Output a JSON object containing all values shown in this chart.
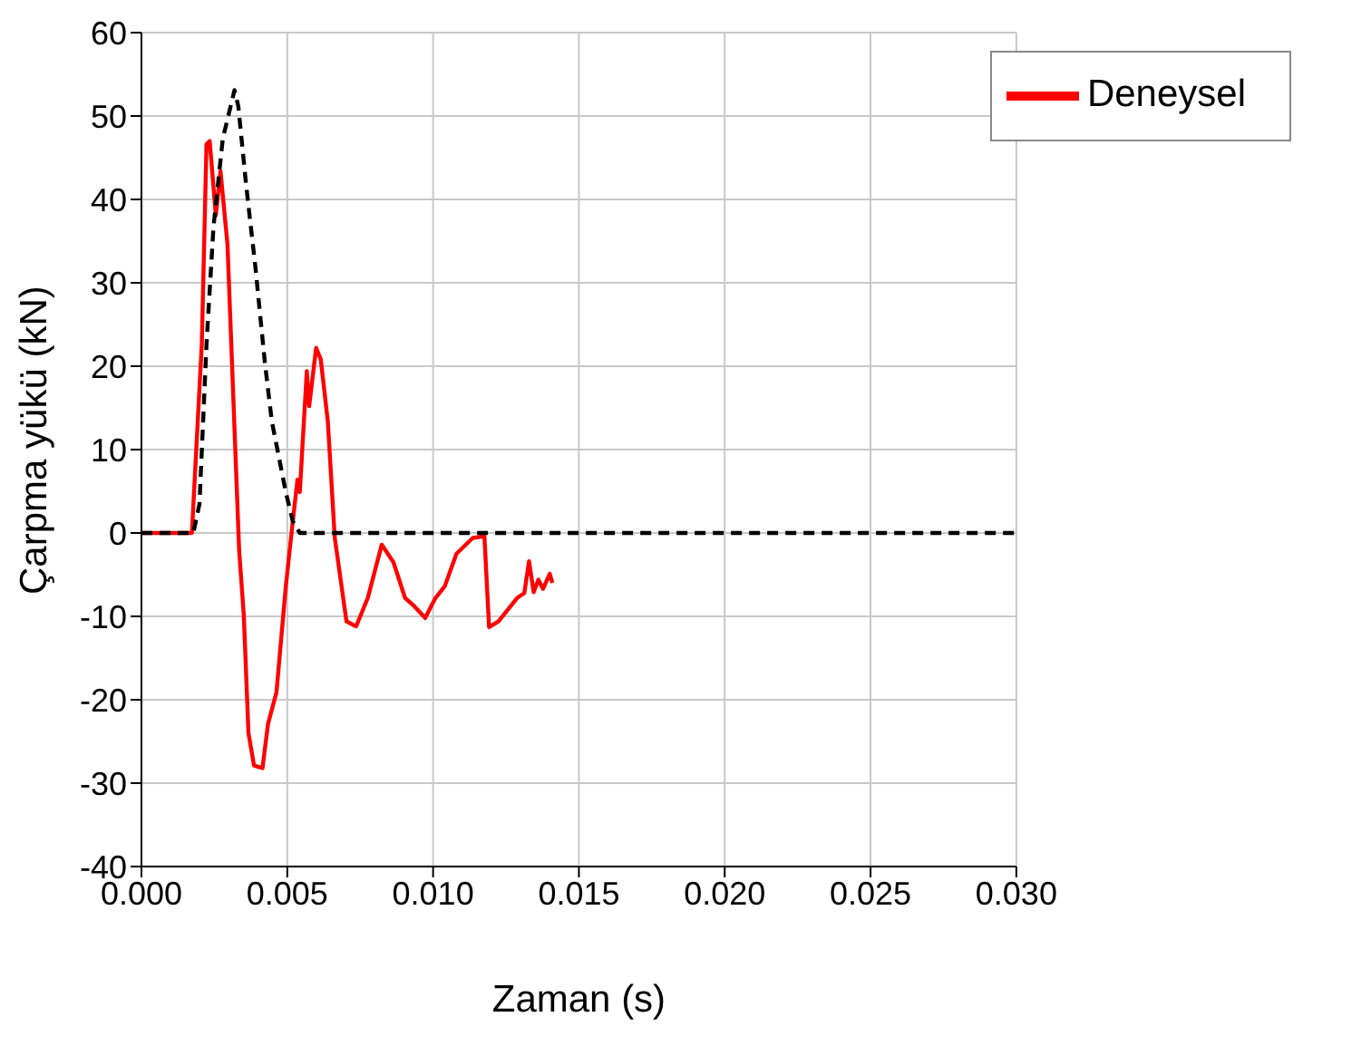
{
  "chart_data": {
    "type": "line",
    "xlabel": "Zaman (s)",
    "ylabel": "Çarpma yükü (kN)",
    "xlim": [
      0,
      0.03
    ],
    "ylim": [
      -40,
      60
    ],
    "xticks": [
      {
        "value": 0,
        "label": "0.000"
      },
      {
        "value": 0.005,
        "label": "0.005"
      },
      {
        "value": 0.01,
        "label": "0.010"
      },
      {
        "value": 0.015,
        "label": "0.015"
      },
      {
        "value": 0.02,
        "label": "0.020"
      },
      {
        "value": 0.025,
        "label": "0.025"
      },
      {
        "value": 0.03,
        "label": "0.030"
      }
    ],
    "yticks": [
      -40,
      -30,
      -20,
      -10,
      0,
      10,
      20,
      30,
      40,
      50,
      60
    ],
    "grid": true,
    "legend": "top right",
    "marker": "none",
    "series": [
      {
        "name": "Deneysel",
        "color": "#ff0000",
        "line_style": "solid",
        "x": [
          0,
          0.00173,
          0.00207,
          0.00223,
          0.00234,
          0.00255,
          0.00271,
          0.00295,
          0.00335,
          0.00351,
          0.00367,
          0.00386,
          0.00415,
          0.00434,
          0.00463,
          0.00495,
          0.00519,
          0.00535,
          0.00543,
          0.00567,
          0.00575,
          0.00599,
          0.00615,
          0.00639,
          0.00663,
          0.00703,
          0.00736,
          0.00776,
          0.00824,
          0.00864,
          0.00904,
          0.00936,
          0.00973,
          0.01008,
          0.0104,
          0.0108,
          0.01136,
          0.01176,
          0.01192,
          0.01224,
          0.01288,
          0.01313,
          0.01329,
          0.01345,
          0.01361,
          0.01377,
          0.014,
          0.01409
        ],
        "values": [
          0,
          0,
          22.7,
          46.6,
          47,
          38.1,
          43.4,
          34.6,
          -2.1,
          -9.9,
          -24,
          -27.9,
          -28.2,
          -22.9,
          -19.1,
          -6.4,
          1.4,
          6.4,
          4.9,
          19.4,
          15.2,
          22.2,
          20.8,
          13.4,
          -0.6,
          -10.6,
          -11.2,
          -7.8,
          -1.4,
          -3.5,
          -7.8,
          -8.8,
          -10.2,
          -7.8,
          -6.4,
          -2.5,
          -0.6,
          -0.4,
          -11.3,
          -10.6,
          -7.8,
          -7.2,
          -3.4,
          -7.1,
          -5.6,
          -6.7,
          -4.9,
          -6
        ]
      },
      {
        "color": "#000000",
        "line_style": "dashed",
        "x": [
          0,
          0.00178,
          0.00199,
          0.00223,
          0.00247,
          0.00279,
          0.00319,
          0.00332,
          0.00359,
          0.00391,
          0.00423,
          0.00447,
          0.00495,
          0.00519,
          0.00543,
          0.03
        ],
        "values": [
          0,
          0,
          3.5,
          22.6,
          36.7,
          47.3,
          53.1,
          51.2,
          41.7,
          31.8,
          20.5,
          13.4,
          4.9,
          1.4,
          0,
          0
        ]
      }
    ]
  }
}
